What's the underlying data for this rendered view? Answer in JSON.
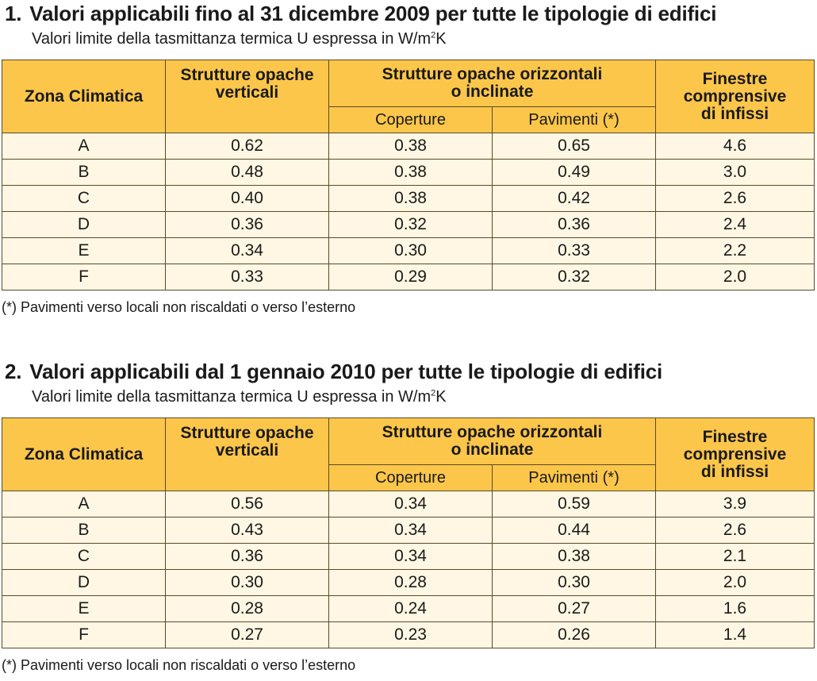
{
  "headers": {
    "zona": "Zona Climatica",
    "verticali": "Strutture opache verticali",
    "orizzontali": "Strutture opache orizzontali o inclinate",
    "coperture": "Coperture",
    "pavimenti": "Pavimenti (*)",
    "finestre": "Finestre comprensive di infissi"
  },
  "subtitle_prefix": "Valori limite della tasmittanza termica U espressa in W/m",
  "subtitle_sup": "2",
  "subtitle_suffix": "K",
  "note": "(*) Pavimenti verso locali non riscaldati o verso l’esterno",
  "tables": [
    {
      "number": "1.",
      "title": "Valori applicabili fino al 31 dicembre 2009 per tutte le tipologie di edifici",
      "rows": [
        {
          "zona": "A",
          "verticali": "0.62",
          "coperture": "0.38",
          "pavimenti": "0.65",
          "finestre": "4.6"
        },
        {
          "zona": "B",
          "verticali": "0.48",
          "coperture": "0.38",
          "pavimenti": "0.49",
          "finestre": "3.0"
        },
        {
          "zona": "C",
          "verticali": "0.40",
          "coperture": "0.38",
          "pavimenti": "0.42",
          "finestre": "2.6"
        },
        {
          "zona": "D",
          "verticali": "0.36",
          "coperture": "0.32",
          "pavimenti": "0.36",
          "finestre": "2.4"
        },
        {
          "zona": "E",
          "verticali": "0.34",
          "coperture": "0.30",
          "pavimenti": "0.33",
          "finestre": "2.2"
        },
        {
          "zona": "F",
          "verticali": "0.33",
          "coperture": "0.29",
          "pavimenti": "0.32",
          "finestre": "2.0"
        }
      ]
    },
    {
      "number": "2.",
      "title": "Valori applicabili dal 1 gennaio 2010 per tutte le tipologie di edifici",
      "rows": [
        {
          "zona": "A",
          "verticali": "0.56",
          "coperture": "0.34",
          "pavimenti": "0.59",
          "finestre": "3.9"
        },
        {
          "zona": "B",
          "verticali": "0.43",
          "coperture": "0.34",
          "pavimenti": "0.44",
          "finestre": "2.6"
        },
        {
          "zona": "C",
          "verticali": "0.36",
          "coperture": "0.34",
          "pavimenti": "0.38",
          "finestre": "2.1"
        },
        {
          "zona": "D",
          "verticali": "0.30",
          "coperture": "0.28",
          "pavimenti": "0.30",
          "finestre": "2.0"
        },
        {
          "zona": "E",
          "verticali": "0.28",
          "coperture": "0.24",
          "pavimenti": "0.27",
          "finestre": "1.6"
        },
        {
          "zona": "F",
          "verticali": "0.27",
          "coperture": "0.23",
          "pavimenti": "0.26",
          "finestre": "1.4"
        }
      ]
    }
  ]
}
